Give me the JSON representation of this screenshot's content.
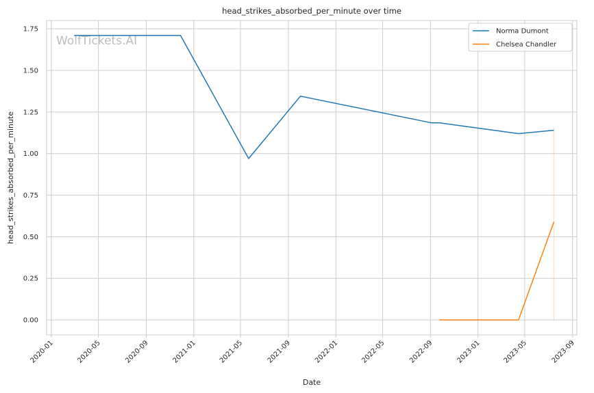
{
  "chart_data": {
    "type": "line",
    "title": "head_strikes_absorbed_per_minute over time",
    "xlabel": "Date",
    "ylabel": "head_strikes_absorbed_per_minute",
    "watermark": "WolfTickets.AI",
    "xlim": [
      "2019-12-20",
      "2023-09-12"
    ],
    "ylim": [
      -0.09,
      1.8
    ],
    "x_ticks": [
      "2020-01",
      "2020-05",
      "2020-09",
      "2021-01",
      "2021-05",
      "2021-09",
      "2022-01",
      "2022-05",
      "2022-09",
      "2023-01",
      "2023-05",
      "2023-09"
    ],
    "y_ticks": [
      0.0,
      0.25,
      0.5,
      0.75,
      1.0,
      1.25,
      1.5,
      1.75
    ],
    "y_tick_labels": [
      "0.00",
      "0.25",
      "0.50",
      "0.75",
      "1.00",
      "1.25",
      "1.50",
      "1.75"
    ],
    "grid": true,
    "legend_position": "top-right",
    "series": [
      {
        "name": "Norma Dumont",
        "color": "#1f77b4",
        "points": [
          {
            "x": "2020-02-29",
            "y": 1.71
          },
          {
            "x": "2020-11-28",
            "y": 1.71
          },
          {
            "x": "2021-05-22",
            "y": 0.97
          },
          {
            "x": "2021-10-02",
            "y": 1.345
          },
          {
            "x": "2022-09-03",
            "y": 1.185
          },
          {
            "x": "2022-09-24",
            "y": 1.185
          },
          {
            "x": "2023-04-15",
            "y": 1.12
          },
          {
            "x": "2023-07-15",
            "y": 1.14
          }
        ]
      },
      {
        "name": "Chelsea Chandler",
        "color": "#ff7f0e",
        "points": [
          {
            "x": "2022-09-24",
            "y": 0.0
          },
          {
            "x": "2023-04-15",
            "y": 0.0
          },
          {
            "x": "2023-07-15",
            "y": 0.59
          }
        ]
      }
    ]
  }
}
